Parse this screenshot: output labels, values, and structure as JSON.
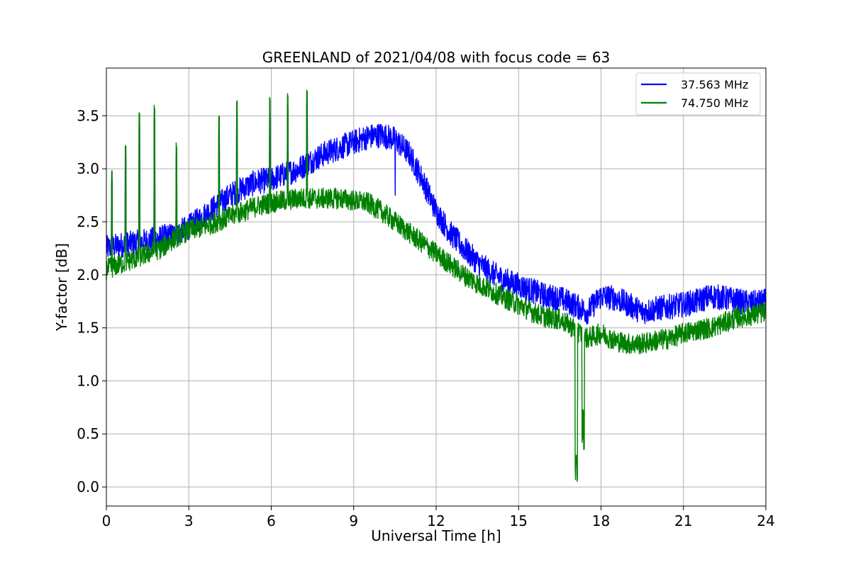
{
  "chart_data": {
    "type": "line",
    "title": "GREENLAND of 2021/04/08 with focus code = 63",
    "xlabel": "Universal Time [h]",
    "ylabel": "Y-factor [dB]",
    "xlim": [
      0,
      24
    ],
    "ylim": [
      -0.18,
      3.95
    ],
    "xticks": [
      0,
      3,
      6,
      9,
      12,
      15,
      18,
      21,
      24
    ],
    "xtick_labels": [
      "0",
      "3",
      "6",
      "9",
      "12",
      "15",
      "18",
      "21",
      "24"
    ],
    "yticks": [
      0.0,
      0.5,
      1.0,
      1.5,
      2.0,
      2.5,
      3.0,
      3.5
    ],
    "ytick_labels": [
      "0.0",
      "0.5",
      "1.0",
      "1.5",
      "2.0",
      "2.5",
      "3.0",
      "3.5"
    ],
    "grid": true,
    "legend_position": "top-right",
    "series": [
      {
        "name": "37.563 MHz",
        "color": "#0000ff",
        "x": [
          0,
          0.5,
          1,
          1.5,
          2,
          2.5,
          3,
          3.5,
          4,
          4.5,
          5,
          5.5,
          6,
          6.5,
          7,
          7.5,
          8,
          8.5,
          9,
          9.5,
          10,
          10.5,
          11,
          11.5,
          12,
          12.5,
          13,
          13.5,
          14,
          14.5,
          15,
          15.5,
          16,
          16.5,
          17,
          17.5,
          18,
          18.5,
          19,
          19.5,
          20,
          20.5,
          21,
          21.5,
          22,
          22.5,
          23,
          23.5,
          24
        ],
        "y": [
          2.25,
          2.28,
          2.3,
          2.32,
          2.35,
          2.38,
          2.45,
          2.55,
          2.65,
          2.75,
          2.82,
          2.88,
          2.9,
          2.95,
          3.0,
          3.08,
          3.15,
          3.2,
          3.25,
          3.3,
          3.32,
          3.28,
          3.15,
          2.9,
          2.6,
          2.4,
          2.25,
          2.12,
          2.02,
          1.95,
          1.9,
          1.85,
          1.8,
          1.78,
          1.72,
          1.65,
          1.8,
          1.78,
          1.72,
          1.65,
          1.68,
          1.7,
          1.72,
          1.75,
          1.8,
          1.78,
          1.75,
          1.73,
          1.75
        ]
      },
      {
        "name": "74.750 MHz",
        "color": "#008000",
        "x": [
          0,
          0.5,
          1,
          1.5,
          2,
          2.5,
          3,
          3.5,
          4,
          4.5,
          5,
          5.5,
          6,
          6.5,
          7,
          7.5,
          8,
          8.5,
          9,
          9.5,
          10,
          10.5,
          11,
          11.5,
          12,
          12.5,
          13,
          13.5,
          14,
          14.5,
          15,
          15.5,
          16,
          16.5,
          17,
          17.5,
          18,
          18.5,
          19,
          19.5,
          20,
          20.5,
          21,
          21.5,
          22,
          22.5,
          23,
          23.5,
          24
        ],
        "y": [
          2.05,
          2.1,
          2.15,
          2.2,
          2.25,
          2.35,
          2.42,
          2.45,
          2.5,
          2.55,
          2.6,
          2.65,
          2.68,
          2.7,
          2.72,
          2.72,
          2.72,
          2.72,
          2.7,
          2.68,
          2.6,
          2.5,
          2.4,
          2.3,
          2.2,
          2.1,
          2.0,
          1.92,
          1.85,
          1.78,
          1.72,
          1.65,
          1.6,
          1.58,
          1.5,
          1.4,
          1.45,
          1.38,
          1.35,
          1.35,
          1.38,
          1.4,
          1.45,
          1.48,
          1.5,
          1.55,
          1.6,
          1.62,
          1.65
        ]
      }
    ],
    "annotations_notes": "dense noisy traces; sharp spikes near hours 0.2, 0.7, 1.2, 1.7, 2.5, 4.1, 4.7, 5.9, 6.6, 7.3; deep dip in green near hour 17.1 to 0.0"
  }
}
